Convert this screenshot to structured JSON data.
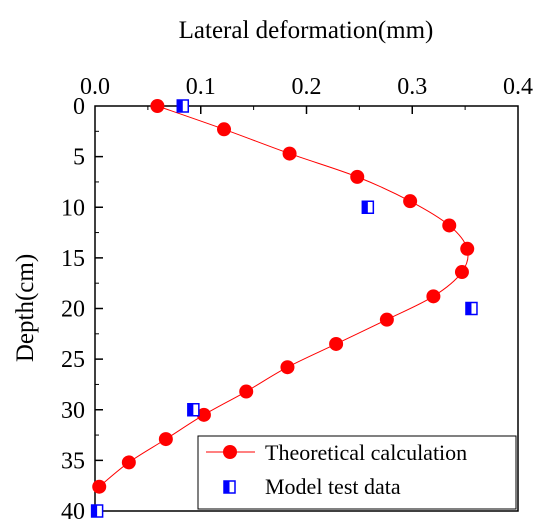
{
  "chart_data": {
    "type": "scatter",
    "xlabel": "Lateral deformation(mm)",
    "ylabel": "Depth(cm)",
    "xlim": [
      0,
      0.4
    ],
    "ylim": [
      0,
      40
    ],
    "y_inverted": true,
    "x_axis_position": "top",
    "x_ticks": [
      "0.0",
      "0.1",
      "0.2",
      "0.3",
      "0.4"
    ],
    "y_ticks": [
      "0",
      "5",
      "10",
      "15",
      "20",
      "25",
      "30",
      "35",
      "40"
    ],
    "grid": false,
    "legend_position": "bottom-right",
    "series": [
      {
        "name": "Theoretical calculation",
        "marker": "circle",
        "color": "#ff0000",
        "line": true,
        "points": [
          [
            0.059,
            0.0
          ],
          [
            0.122,
            2.3
          ],
          [
            0.184,
            4.7
          ],
          [
            0.248,
            7.0
          ],
          [
            0.298,
            9.4
          ],
          [
            0.335,
            11.8
          ],
          [
            0.352,
            14.1
          ],
          [
            0.347,
            16.4
          ],
          [
            0.32,
            18.8
          ],
          [
            0.276,
            21.1
          ],
          [
            0.228,
            23.5
          ],
          [
            0.182,
            25.8
          ],
          [
            0.143,
            28.2
          ],
          [
            0.103,
            30.5
          ],
          [
            0.067,
            32.9
          ],
          [
            0.032,
            35.2
          ],
          [
            0.004,
            37.6
          ]
        ]
      },
      {
        "name": "Model test data",
        "marker": "half-filled-square",
        "color": "#0000ff",
        "line": false,
        "points": [
          [
            0.083,
            0.0
          ],
          [
            0.258,
            10.0
          ],
          [
            0.356,
            20.0
          ],
          [
            0.093,
            30.0
          ],
          [
            0.002,
            40.0
          ]
        ]
      }
    ]
  }
}
